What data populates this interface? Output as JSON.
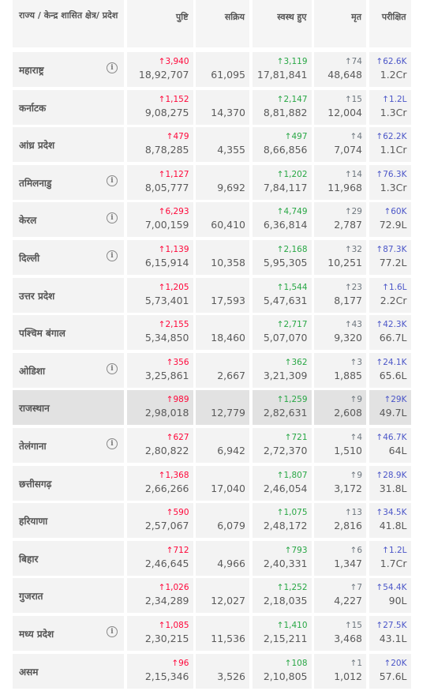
{
  "header": {
    "state": "राज्य / केन्द्र शासित क्षेत्र/ प्रदेश",
    "columns": [
      "पुष्टि",
      "सक्रिय",
      "स्वस्थ हुए",
      "मृत",
      "परीक्षित"
    ]
  },
  "rows": [
    {
      "state": "महाराष्ट्र",
      "info": true,
      "confirmed": {
        "delta": "3,940",
        "total": "18,92,707"
      },
      "active": "61,095",
      "recovered": {
        "delta": "3,119",
        "total": "17,81,841"
      },
      "deceased": {
        "delta": "74",
        "total": "48,648"
      },
      "tested": {
        "delta": "62.6K",
        "total": "1.2Cr"
      }
    },
    {
      "state": "कर्नाटक",
      "info": false,
      "confirmed": {
        "delta": "1,152",
        "total": "9,08,275"
      },
      "active": "14,370",
      "recovered": {
        "delta": "2,147",
        "total": "8,81,882"
      },
      "deceased": {
        "delta": "15",
        "total": "12,004"
      },
      "tested": {
        "delta": "1.2L",
        "total": "1.3Cr"
      }
    },
    {
      "state": "आंध्र प्रदेश",
      "info": false,
      "confirmed": {
        "delta": "479",
        "total": "8,78,285"
      },
      "active": "4,355",
      "recovered": {
        "delta": "497",
        "total": "8,66,856"
      },
      "deceased": {
        "delta": "4",
        "total": "7,074"
      },
      "tested": {
        "delta": "62.2K",
        "total": "1.1Cr"
      }
    },
    {
      "state": "तमिलनाडु",
      "info": true,
      "confirmed": {
        "delta": "1,127",
        "total": "8,05,777"
      },
      "active": "9,692",
      "recovered": {
        "delta": "1,202",
        "total": "7,84,117"
      },
      "deceased": {
        "delta": "14",
        "total": "11,968"
      },
      "tested": {
        "delta": "76.3K",
        "total": "1.3Cr"
      }
    },
    {
      "state": "केरल",
      "info": true,
      "confirmed": {
        "delta": "6,293",
        "total": "7,00,159"
      },
      "active": "60,410",
      "recovered": {
        "delta": "4,749",
        "total": "6,36,814"
      },
      "deceased": {
        "delta": "29",
        "total": "2,787"
      },
      "tested": {
        "delta": "60K",
        "total": "72.9L"
      }
    },
    {
      "state": "दिल्ली",
      "info": true,
      "confirmed": {
        "delta": "1,139",
        "total": "6,15,914"
      },
      "active": "10,358",
      "recovered": {
        "delta": "2,168",
        "total": "5,95,305"
      },
      "deceased": {
        "delta": "32",
        "total": "10,251"
      },
      "tested": {
        "delta": "87.3K",
        "total": "77.2L"
      }
    },
    {
      "state": "उत्तर प्रदेश",
      "info": false,
      "confirmed": {
        "delta": "1,205",
        "total": "5,73,401"
      },
      "active": "17,593",
      "recovered": {
        "delta": "1,544",
        "total": "5,47,631"
      },
      "deceased": {
        "delta": "23",
        "total": "8,177"
      },
      "tested": {
        "delta": "1.6L",
        "total": "2.2Cr"
      }
    },
    {
      "state": "पश्चिम बंगाल",
      "info": false,
      "confirmed": {
        "delta": "2,155",
        "total": "5,34,850"
      },
      "active": "18,460",
      "recovered": {
        "delta": "2,717",
        "total": "5,07,070"
      },
      "deceased": {
        "delta": "43",
        "total": "9,320"
      },
      "tested": {
        "delta": "42.3K",
        "total": "66.7L"
      }
    },
    {
      "state": "ओडिशा",
      "info": true,
      "confirmed": {
        "delta": "356",
        "total": "3,25,861"
      },
      "active": "2,667",
      "recovered": {
        "delta": "362",
        "total": "3,21,309"
      },
      "deceased": {
        "delta": "3",
        "total": "1,885"
      },
      "tested": {
        "delta": "24.1K",
        "total": "65.6L"
      }
    },
    {
      "state": "राजस्थान",
      "info": false,
      "confirmed": {
        "delta": "989",
        "total": "2,98,018"
      },
      "active": "12,779",
      "recovered": {
        "delta": "1,259",
        "total": "2,82,631"
      },
      "deceased": {
        "delta": "9",
        "total": "2,608"
      },
      "tested": {
        "delta": "29K",
        "total": "49.7L"
      }
    },
    {
      "state": "तेलंगाना",
      "info": true,
      "confirmed": {
        "delta": "627",
        "total": "2,80,822"
      },
      "active": "6,942",
      "recovered": {
        "delta": "721",
        "total": "2,72,370"
      },
      "deceased": {
        "delta": "4",
        "total": "1,510"
      },
      "tested": {
        "delta": "46.7K",
        "total": "64L"
      }
    },
    {
      "state": "छत्तीसगढ़",
      "info": false,
      "confirmed": {
        "delta": "1,368",
        "total": "2,66,266"
      },
      "active": "17,040",
      "recovered": {
        "delta": "1,807",
        "total": "2,46,054"
      },
      "deceased": {
        "delta": "9",
        "total": "3,172"
      },
      "tested": {
        "delta": "28.9K",
        "total": "31.8L"
      }
    },
    {
      "state": "हरियाणा",
      "info": false,
      "confirmed": {
        "delta": "590",
        "total": "2,57,067"
      },
      "active": "6,079",
      "recovered": {
        "delta": "1,075",
        "total": "2,48,172"
      },
      "deceased": {
        "delta": "13",
        "total": "2,816"
      },
      "tested": {
        "delta": "34.5K",
        "total": "41.8L"
      }
    },
    {
      "state": "बिहार",
      "info": false,
      "confirmed": {
        "delta": "712",
        "total": "2,46,645"
      },
      "active": "4,966",
      "recovered": {
        "delta": "793",
        "total": "2,40,331"
      },
      "deceased": {
        "delta": "6",
        "total": "1,347"
      },
      "tested": {
        "delta": "1.2L",
        "total": "1.7Cr"
      }
    },
    {
      "state": "गुजरात",
      "info": false,
      "confirmed": {
        "delta": "1,026",
        "total": "2,34,289"
      },
      "active": "12,027",
      "recovered": {
        "delta": "1,252",
        "total": "2,18,035"
      },
      "deceased": {
        "delta": "7",
        "total": "4,227"
      },
      "tested": {
        "delta": "54.4K",
        "total": "90L"
      }
    },
    {
      "state": "मध्य प्रदेश",
      "info": true,
      "confirmed": {
        "delta": "1,085",
        "total": "2,30,215"
      },
      "active": "11,536",
      "recovered": {
        "delta": "1,410",
        "total": "2,15,211"
      },
      "deceased": {
        "delta": "15",
        "total": "3,468"
      },
      "tested": {
        "delta": "27.5K",
        "total": "43.1L"
      }
    },
    {
      "state": "असम",
      "info": false,
      "confirmed": {
        "delta": "96",
        "total": "2,15,346"
      },
      "active": "3,526",
      "recovered": {
        "delta": "108",
        "total": "2,10,805"
      },
      "deceased": {
        "delta": "1",
        "total": "1,012"
      },
      "tested": {
        "delta": "20K",
        "total": "57.6L"
      }
    }
  ]
}
